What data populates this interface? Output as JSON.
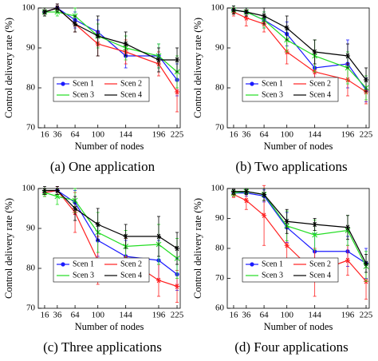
{
  "chart_data": [
    {
      "type": "line",
      "caption": "(a) One application",
      "xlabel": "Number of nodes",
      "ylabel": "Control delivery rate (%)",
      "x": [
        16,
        36,
        64,
        100,
        144,
        196,
        225
      ],
      "xlim": [
        6,
        230
      ],
      "xticks": [
        16,
        36,
        64,
        100,
        144,
        196,
        225
      ],
      "ylim": [
        70,
        100
      ],
      "yticks": [
        70,
        80,
        90,
        100
      ],
      "legend": "center",
      "series": [
        {
          "name": "Scen 1",
          "color": "#1a1aff",
          "marker": "circle",
          "values": [
            99,
            100,
            97,
            94,
            88,
            88,
            82
          ],
          "errors": [
            1,
            1,
            2,
            3,
            3,
            3,
            4
          ]
        },
        {
          "name": "Scen 2",
          "color": "#ff2020",
          "marker": "star",
          "values": [
            99,
            100,
            96,
            91,
            89,
            86,
            79
          ],
          "errors": [
            1,
            1,
            2,
            3,
            3,
            3,
            5
          ]
        },
        {
          "name": "Scen 3",
          "color": "#22dd22",
          "marker": "cross",
          "values": [
            99,
            99,
            98,
            93,
            90,
            88,
            84
          ],
          "errors": [
            1,
            1,
            2,
            3,
            3,
            3,
            4
          ]
        },
        {
          "name": "Scen 4",
          "color": "#000000",
          "marker": "star",
          "values": [
            99,
            100,
            96,
            93,
            91,
            87,
            87
          ],
          "errors": [
            1,
            1,
            2,
            5,
            3,
            3,
            3
          ]
        }
      ]
    },
    {
      "type": "line",
      "caption": "(b) Two applications",
      "xlabel": "Number of nodes",
      "ylabel": "Control delivery rate (%)",
      "x": [
        16,
        36,
        64,
        100,
        144,
        196,
        225
      ],
      "xlim": [
        6,
        230
      ],
      "xticks": [
        16,
        36,
        64,
        100,
        144,
        196,
        225
      ],
      "ylim": [
        70,
        100
      ],
      "yticks": [
        70,
        80,
        90,
        100
      ],
      "legend": "center",
      "series": [
        {
          "name": "Scen 1",
          "color": "#1a1aff",
          "marker": "circle",
          "values": [
            99.5,
            99,
            97,
            93.5,
            85,
            86,
            79.5
          ],
          "errors": [
            1,
            1,
            2,
            3,
            4,
            6,
            3
          ]
        },
        {
          "name": "Scen 2",
          "color": "#ff2020",
          "marker": "star",
          "values": [
            99,
            97.5,
            96,
            89,
            84,
            82,
            79
          ],
          "errors": [
            1,
            2,
            2,
            3,
            5,
            4,
            3
          ]
        },
        {
          "name": "Scen 3",
          "color": "#22dd22",
          "marker": "cross",
          "values": [
            99.5,
            99,
            97,
            92,
            88,
            85,
            80
          ],
          "errors": [
            1,
            1,
            2,
            3,
            4,
            4,
            3
          ]
        },
        {
          "name": "Scen 4",
          "color": "#000000",
          "marker": "star",
          "values": [
            99.5,
            99,
            98,
            95,
            89,
            88,
            82
          ],
          "errors": [
            1,
            1,
            2,
            3,
            3,
            3,
            3
          ]
        }
      ]
    },
    {
      "type": "line",
      "caption": "(c) Three applications",
      "xlabel": "Number of nodes",
      "ylabel": "Control delivery rate (%)",
      "x": [
        16,
        36,
        64,
        100,
        144,
        196,
        225
      ],
      "xlim": [
        6,
        230
      ],
      "xticks": [
        16,
        36,
        64,
        100,
        144,
        196,
        225
      ],
      "ylim": [
        70,
        100
      ],
      "yticks": [
        70,
        80,
        90,
        100
      ],
      "legend": "center",
      "series": [
        {
          "name": "Scen 1",
          "color": "#1a1aff",
          "marker": "circle",
          "values": [
            99,
            99.5,
            96.5,
            87,
            83,
            82,
            78.5
          ],
          "errors": [
            1,
            1,
            3,
            4,
            4,
            5,
            4
          ]
        },
        {
          "name": "Scen 2",
          "color": "#ff2020",
          "marker": "star",
          "values": [
            99,
            99.5,
            94,
            82,
            82.5,
            77,
            75.5
          ],
          "errors": [
            1,
            1,
            5,
            6,
            5,
            4,
            4
          ]
        },
        {
          "name": "Scen 3",
          "color": "#22dd22",
          "marker": "cross",
          "values": [
            99,
            98,
            97,
            89,
            85.5,
            86,
            82.5
          ],
          "errors": [
            1,
            2,
            3,
            5,
            4,
            5,
            5
          ]
        },
        {
          "name": "Scen 4",
          "color": "#000000",
          "marker": "star",
          "values": [
            99.5,
            99.5,
            95,
            91,
            88,
            88,
            85
          ],
          "errors": [
            1,
            1,
            3,
            4,
            3,
            5,
            4
          ]
        }
      ]
    },
    {
      "type": "line",
      "caption": "(d) Four applications",
      "xlabel": "Number of nodes",
      "ylabel": "Control delivery rate (%)",
      "x": [
        16,
        36,
        64,
        100,
        144,
        196,
        225
      ],
      "xlim": [
        6,
        230
      ],
      "xticks": [
        16,
        36,
        64,
        100,
        144,
        196,
        225
      ],
      "ylim": [
        60,
        100
      ],
      "yticks": [
        60,
        70,
        80,
        90,
        100
      ],
      "legend": "center",
      "series": [
        {
          "name": "Scen 1",
          "color": "#1a1aff",
          "marker": "circle",
          "values": [
            98.5,
            98.5,
            97.5,
            87,
            79,
            79,
            75
          ],
          "errors": [
            1,
            1,
            2,
            5,
            6,
            5,
            5
          ]
        },
        {
          "name": "Scen 2",
          "color": "#ff2020",
          "marker": "star",
          "values": [
            98,
            96,
            91,
            81,
            72,
            76,
            69
          ],
          "errors": [
            1,
            3,
            10,
            6,
            8,
            5,
            6
          ]
        },
        {
          "name": "Scen 3",
          "color": "#22dd22",
          "marker": "cross",
          "values": [
            98.5,
            99,
            98,
            87.5,
            84.5,
            86,
            74
          ],
          "errors": [
            1,
            1,
            2,
            5,
            5,
            5,
            5
          ]
        },
        {
          "name": "Scen 4",
          "color": "#000000",
          "marker": "star",
          "values": [
            99,
            99,
            98,
            89,
            88,
            87,
            75
          ],
          "errors": [
            1,
            1,
            2,
            4,
            2,
            4,
            3
          ]
        }
      ]
    }
  ]
}
